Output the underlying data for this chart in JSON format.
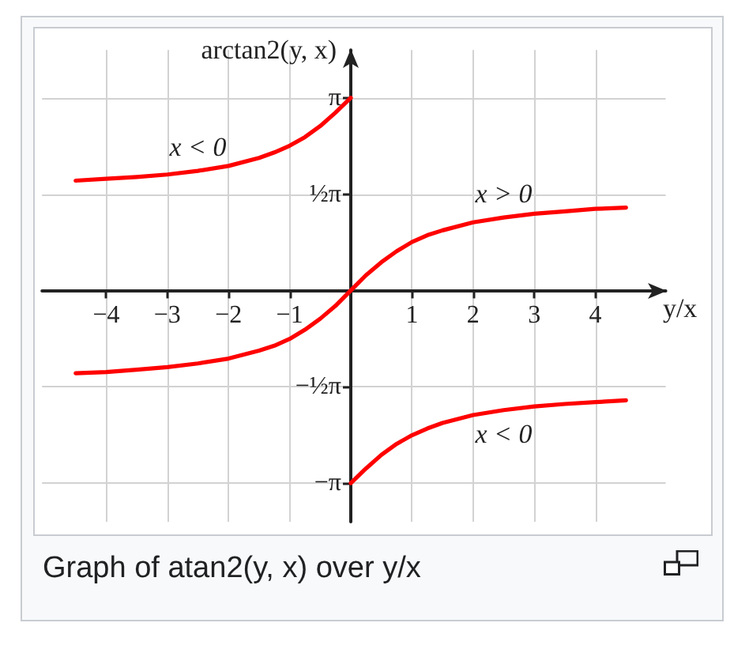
{
  "chart_data": {
    "type": "line",
    "xlabel": "y/x",
    "ylabel": "arctan2(y, x)",
    "xlim": [
      -5.05,
      5.15
    ],
    "ylim": [
      -3.77,
      3.92
    ],
    "xticks": [
      {
        "value": -4,
        "label": "−4"
      },
      {
        "value": -3,
        "label": "−3"
      },
      {
        "value": -2,
        "label": "−2"
      },
      {
        "value": -1,
        "label": "−1"
      },
      1,
      2,
      3,
      4
    ],
    "yticks": [
      {
        "value": -3.14,
        "label": "−π"
      },
      {
        "value": -1.57,
        "label": "−½π"
      },
      {
        "value": 1.57,
        "label": "½π"
      },
      {
        "value": 3.14,
        "label": "π"
      }
    ],
    "grid": true,
    "marker": "none",
    "line_style": "solid",
    "series": [
      {
        "name": "x < 0",
        "color": "#ff0000",
        "x": [
          -4.5,
          -4,
          -3.5,
          -3,
          -2.5,
          -2,
          -1.5,
          -1.25,
          -1,
          -0.75,
          -0.5,
          -0.25,
          0
        ],
        "values": [
          1.79,
          1.82,
          1.85,
          1.89,
          1.95,
          2.03,
          2.16,
          2.25,
          2.36,
          2.5,
          2.68,
          2.9,
          3.14
        ]
      },
      {
        "name": "x > 0",
        "color": "#ff0000",
        "x": [
          -4.5,
          -4,
          -3.5,
          -3,
          -2.5,
          -2,
          -1.5,
          -1.25,
          -1,
          -0.75,
          -0.5,
          -0.25,
          0,
          0.25,
          0.5,
          0.75,
          1,
          1.25,
          1.5,
          2,
          2.5,
          3,
          3.5,
          4,
          4.5
        ],
        "values": [
          -1.35,
          -1.33,
          -1.29,
          -1.25,
          -1.19,
          -1.11,
          -0.98,
          -0.9,
          -0.79,
          -0.64,
          -0.46,
          -0.25,
          0,
          0.25,
          0.46,
          0.64,
          0.79,
          0.9,
          0.98,
          1.11,
          1.19,
          1.25,
          1.29,
          1.33,
          1.35
        ]
      },
      {
        "name": "x < 0",
        "color": "#ff0000",
        "x": [
          0,
          0.25,
          0.5,
          0.75,
          1,
          1.25,
          1.5,
          2,
          2.5,
          3,
          3.5,
          4,
          4.5
        ],
        "values": [
          -3.14,
          -2.9,
          -2.68,
          -2.5,
          -2.36,
          -2.25,
          -2.16,
          -2.03,
          -1.95,
          -1.89,
          -1.85,
          -1.82,
          -1.79
        ]
      }
    ],
    "annotations": [
      "Graph of atan2(y, x) over y/x"
    ]
  }
}
